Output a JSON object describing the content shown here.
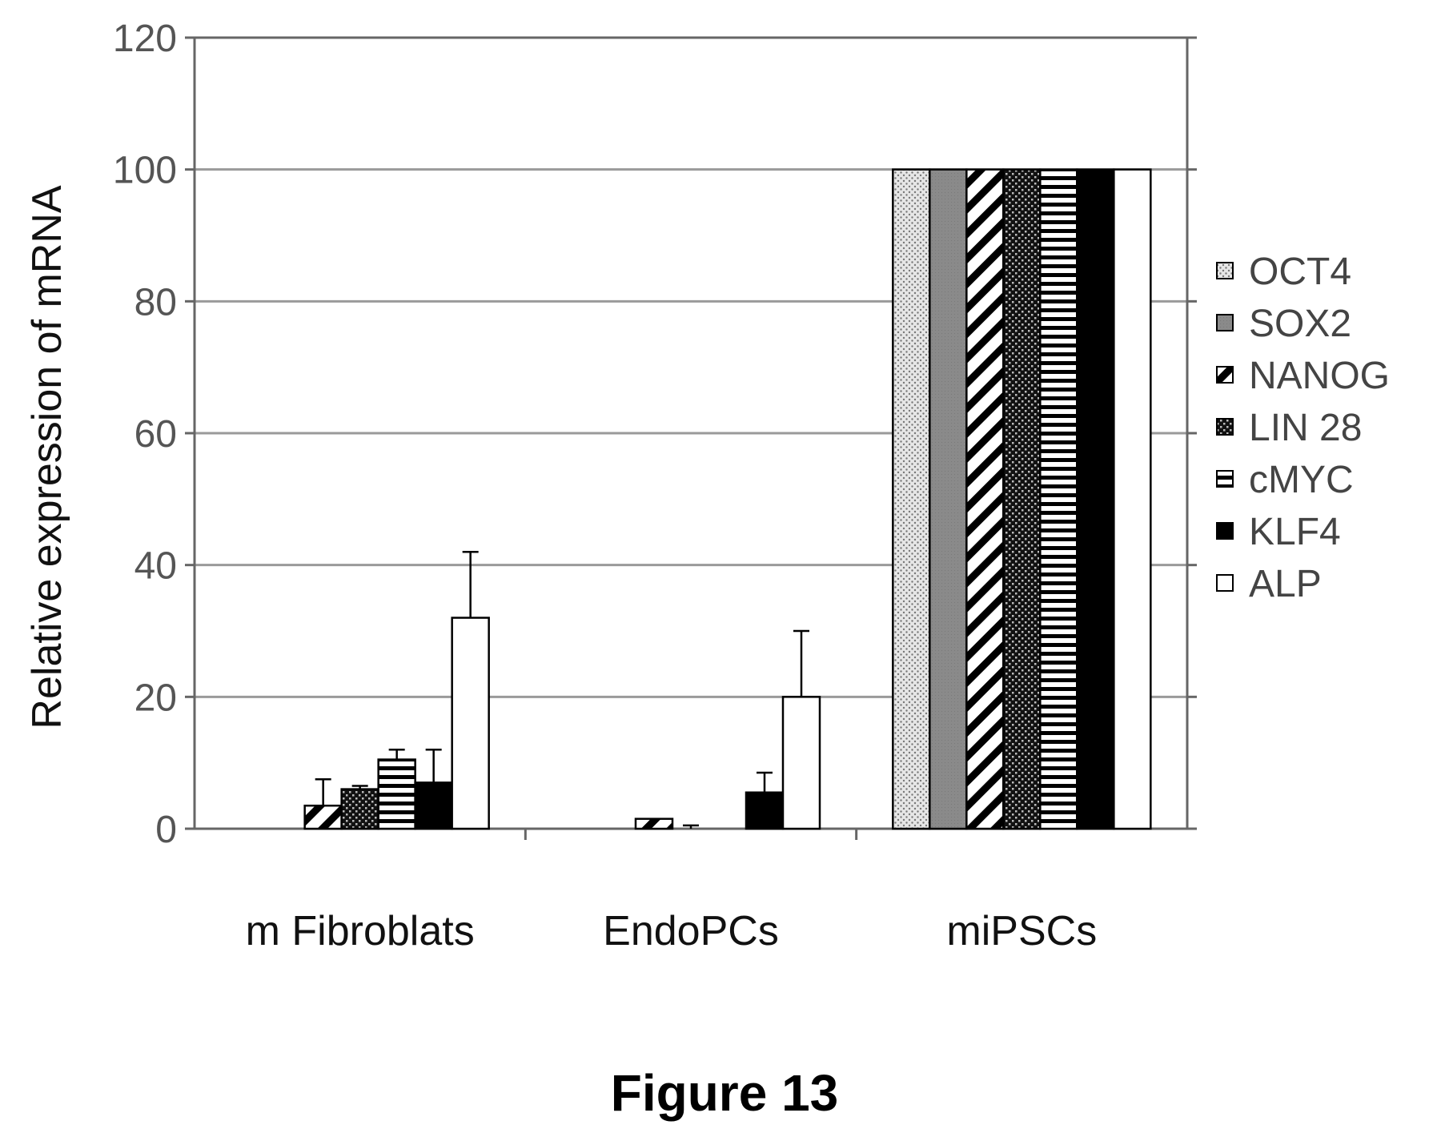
{
  "caption": "Figure 13",
  "chart_data": {
    "type": "bar",
    "ylabel": "Relative expression of mRNA",
    "ylim": [
      0,
      120
    ],
    "yticks": [
      0,
      20,
      40,
      60,
      80,
      100,
      120
    ],
    "grid": true,
    "legend_position": "right",
    "categories": [
      "m Fibroblats",
      "EndoPCs",
      "miPSCs"
    ],
    "series": [
      {
        "name": "OCT4",
        "pattern": "dots",
        "values": [
          0,
          0,
          100
        ],
        "errors": [
          0,
          0,
          0
        ]
      },
      {
        "name": "SOX2",
        "pattern": "gray",
        "values": [
          0,
          0,
          100
        ],
        "errors": [
          0,
          0,
          0
        ]
      },
      {
        "name": "NANOG",
        "pattern": "diagonal",
        "values": [
          3.5,
          1.5,
          100
        ],
        "errors": [
          4,
          0,
          0
        ]
      },
      {
        "name": "LIN 28",
        "pattern": "checker",
        "values": [
          6,
          0,
          100
        ],
        "errors": [
          0.5,
          0.5,
          0
        ]
      },
      {
        "name": "cMYC",
        "pattern": "hlines",
        "values": [
          10.5,
          0,
          100
        ],
        "errors": [
          1.5,
          0,
          0
        ]
      },
      {
        "name": "KLF4",
        "pattern": "black",
        "values": [
          7,
          5.5,
          100
        ],
        "errors": [
          5,
          3,
          0
        ]
      },
      {
        "name": "ALP",
        "pattern": "white",
        "values": [
          32,
          20,
          100
        ],
        "errors": [
          10,
          10,
          0
        ]
      }
    ]
  }
}
